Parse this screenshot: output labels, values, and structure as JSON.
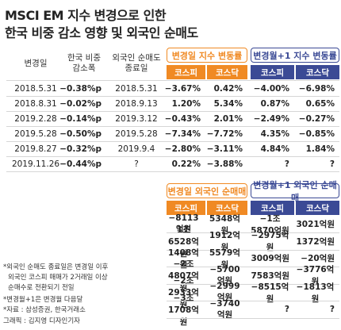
{
  "title": [
    "MSCI EM 지수 변경으로 인한",
    "한국 비중 감소 영향 및 외국인 순매도"
  ],
  "top_table": {
    "headers": [
      "변경일",
      "한국 비중\n감소폭",
      "외국인 순매도\n종료일"
    ],
    "groups": [
      {
        "label": "변경일 지수 변동률",
        "sub": [
          "코스피",
          "코스닥"
        ]
      },
      {
        "label": "변경월+1 지수 변동률",
        "sub": [
          "코스피",
          "코스닥"
        ]
      }
    ],
    "rows": [
      [
        "2018.5.31",
        "−0.38%p",
        "2018.5.31",
        "−3.67%",
        "0.42%",
        "−4.00%",
        "−6.98%"
      ],
      [
        "2018.8.31",
        "−0.02%p",
        "2018.9.13",
        "1.20%",
        "5.34%",
        "0.87%",
        "0.65%"
      ],
      [
        "2019.2.28",
        "−0.14%p",
        "2019.3.12",
        "−0.43%",
        "2.01%",
        "−2.49%",
        "−0.27%"
      ],
      [
        "2019.5.28",
        "−0.50%p",
        "2019.5.28",
        "−7.34%",
        "−7.72%",
        "4.35%",
        "−0.85%"
      ],
      [
        "2019.8.27",
        "−0.32%p",
        "2019.9.4",
        "−2.80%",
        "−3.11%",
        "4.84%",
        "1.84%"
      ],
      [
        "2019.11.26",
        "−0.44%p",
        "?",
        "0.22%",
        "−3.88%",
        "?",
        "?"
      ]
    ]
  },
  "bottom_table": {
    "groups": [
      {
        "label": "변경일 외국인 순매매",
        "sub": [
          "코스피",
          "코스닥"
        ]
      },
      {
        "label": "변경월+1 외국인 순매매",
        "sub": [
          "코스피",
          "코스닥"
        ]
      }
    ],
    "rows": [
      [
        "−8113억원",
        "5348억원",
        "−1조5870억원",
        "3021억원"
      ],
      [
        "1조6528억원",
        "1912억원",
        "−2975억원",
        "1372억원"
      ],
      [
        "1408억원",
        "5579억원",
        "3009억원",
        "−20억원"
      ],
      [
        "−2조4807억원",
        "−5700억원",
        "7583억원",
        "−3776억원"
      ],
      [
        "−2조2933억원",
        "−2999억원",
        "−8515억원",
        "−1813억원"
      ],
      [
        "−3조1708억원",
        "−3740억원",
        "?",
        "?"
      ]
    ]
  },
  "notes": [
    "*외국인 순매도 종료일은 변경일 이후",
    "외국인 코스피 매매가 2거래일 이상",
    "순매수로 전환되기 전일",
    "*변경월+1은 변경월 다음달",
    "*자료 : 삼성증권, 한국거래소",
    "그래픽 : 김지영 디자인기자"
  ]
}
